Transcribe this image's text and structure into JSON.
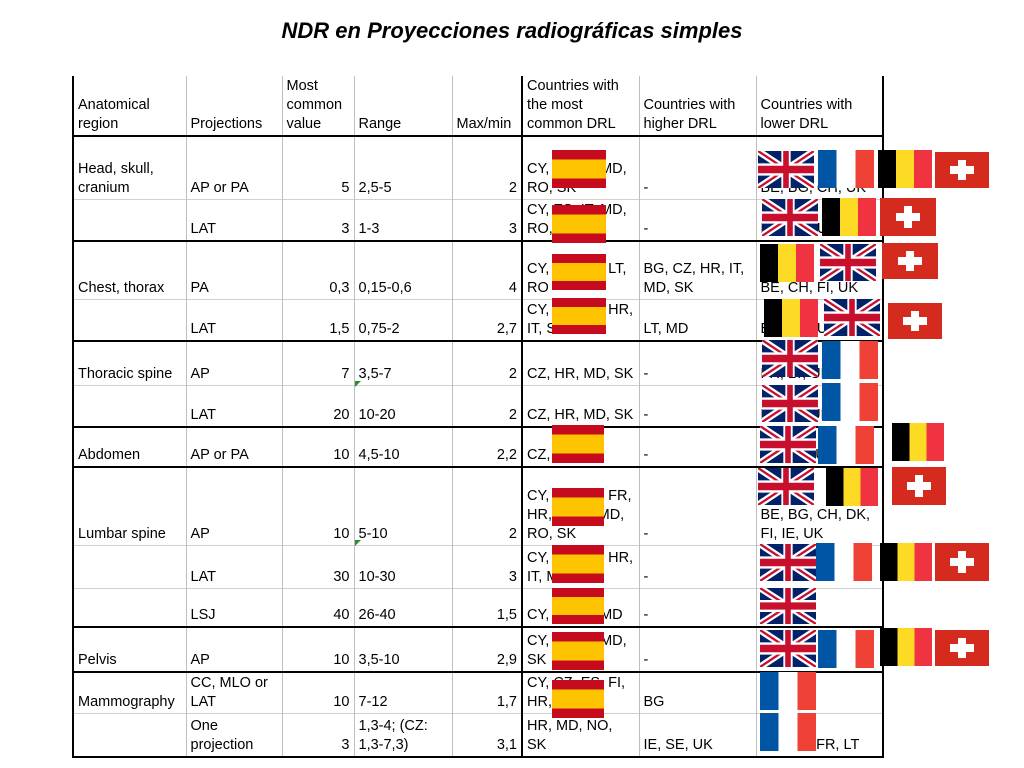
{
  "title": "NDR en Proyecciones radiográficas simples",
  "table": {
    "headers": {
      "region": [
        "Anatomical",
        "region"
      ],
      "projections": "Projections",
      "most_common": [
        "Most",
        "common",
        "value"
      ],
      "range": "Range",
      "maxmin": "Max/min",
      "countries_common": [
        "Countries with",
        "the most",
        "common DRL"
      ],
      "countries_higher": [
        "Countries with",
        "higher DRL"
      ],
      "countries_lower": [
        "Countries with",
        "lower DRL"
      ]
    },
    "rows": [
      {
        "region": "Head, skull, cranium",
        "projections": "AP or PA",
        "value": "5",
        "range": "2,5-5",
        "maxmin": "2",
        "common": "CY, ES, IT, MD, RO, SK",
        "higher": "-",
        "lower": "BE, BG, CH, UK"
      },
      {
        "region": "",
        "projections": "LAT",
        "value": "3",
        "range": "1-3",
        "maxmin": "3",
        "common": "CY, ES, IT, MD, RO, SK",
        "higher": "-",
        "lower": "BE, CH, UK"
      },
      {
        "region": "Chest, thorax",
        "projections": "PA",
        "value": "0,3",
        "range": "0,15-0,6",
        "maxmin": "4",
        "common": "CY, ES, FR, LT, RO",
        "higher": "BG, CZ, HR, IT, MD, SK",
        "lower": "BE, CH, FI, UK"
      },
      {
        "region": "",
        "projections": "LAT",
        "value": "1,5",
        "range": "0,75-2",
        "maxmin": "2,7",
        "common": "CY, ES, FR, HR, IT, SK",
        "higher": "LT, MD",
        "lower": "BE, CH, UK"
      },
      {
        "region": "Thoracic spine",
        "projections": "AP",
        "value": "7",
        "range": "3,5-7",
        "maxmin": "2",
        "common": "CZ, HR, MD, SK",
        "higher": "-",
        "lower": "FR, LT, UK"
      },
      {
        "region": "",
        "projections": "LAT",
        "value": "20",
        "range": "10-20",
        "maxmin": "2",
        "common": "CZ, HR, MD, SK",
        "higher": "-",
        "lower": "FR, LT, UK"
      },
      {
        "region": "Abdomen",
        "projections": "AP or PA",
        "value": "10",
        "range": "4,5-10",
        "maxmin": "2,2",
        "common": "CZ, ES, SK",
        "higher": "-",
        "lower": "BE, FR, UK"
      },
      {
        "region": "Lumbar spine",
        "projections": "AP",
        "value": "10",
        "range": "5-10",
        "maxmin": "2",
        "common": "CY, CZ, ES, FR, HR, IT, LT, MD, RO, SK",
        "higher": "-",
        "lower": "BE, BG, CH, DK, FI, IE, UK"
      },
      {
        "region": "",
        "projections": "LAT",
        "value": "30",
        "range": "10-30",
        "maxmin": "3",
        "common": "CY, CZ, ES, HR, IT, MD, SK",
        "higher": "-",
        "lower": "BE, CH, FR, LT, UK"
      },
      {
        "region": "",
        "projections": "LSJ",
        "value": "40",
        "range": "26-40",
        "maxmin": "1,5",
        "common": "CY, ES, IT, MD",
        "higher": "-",
        "lower": "UK"
      },
      {
        "region": "Pelvis",
        "projections": "AP",
        "value": "10",
        "range": "3,5-10",
        "maxmin": "2,9",
        "common": "CY, ES, IT, MD, SK",
        "higher": "-",
        "lower": "BE, CH, FR, LT, UK"
      },
      {
        "region": "Mammography",
        "projections": "CC, MLO or LAT",
        "value": "10",
        "range": "7-12",
        "maxmin": "1,7",
        "common": "CY, CZ, ES, FI, HR, RO",
        "higher": "BG",
        "lower": "FR"
      },
      {
        "region": "",
        "projections": "One projection",
        "value": "3",
        "range": "1,3-4; (CZ: 1,3-7,3)",
        "maxmin": "3,1",
        "common": "HR, MD, NO, SK",
        "higher": "IE, SE, UK",
        "lower": "BE, DE, FR, LT"
      }
    ]
  },
  "flags": [
    "es",
    "uk",
    "fr",
    "be",
    "ch"
  ]
}
